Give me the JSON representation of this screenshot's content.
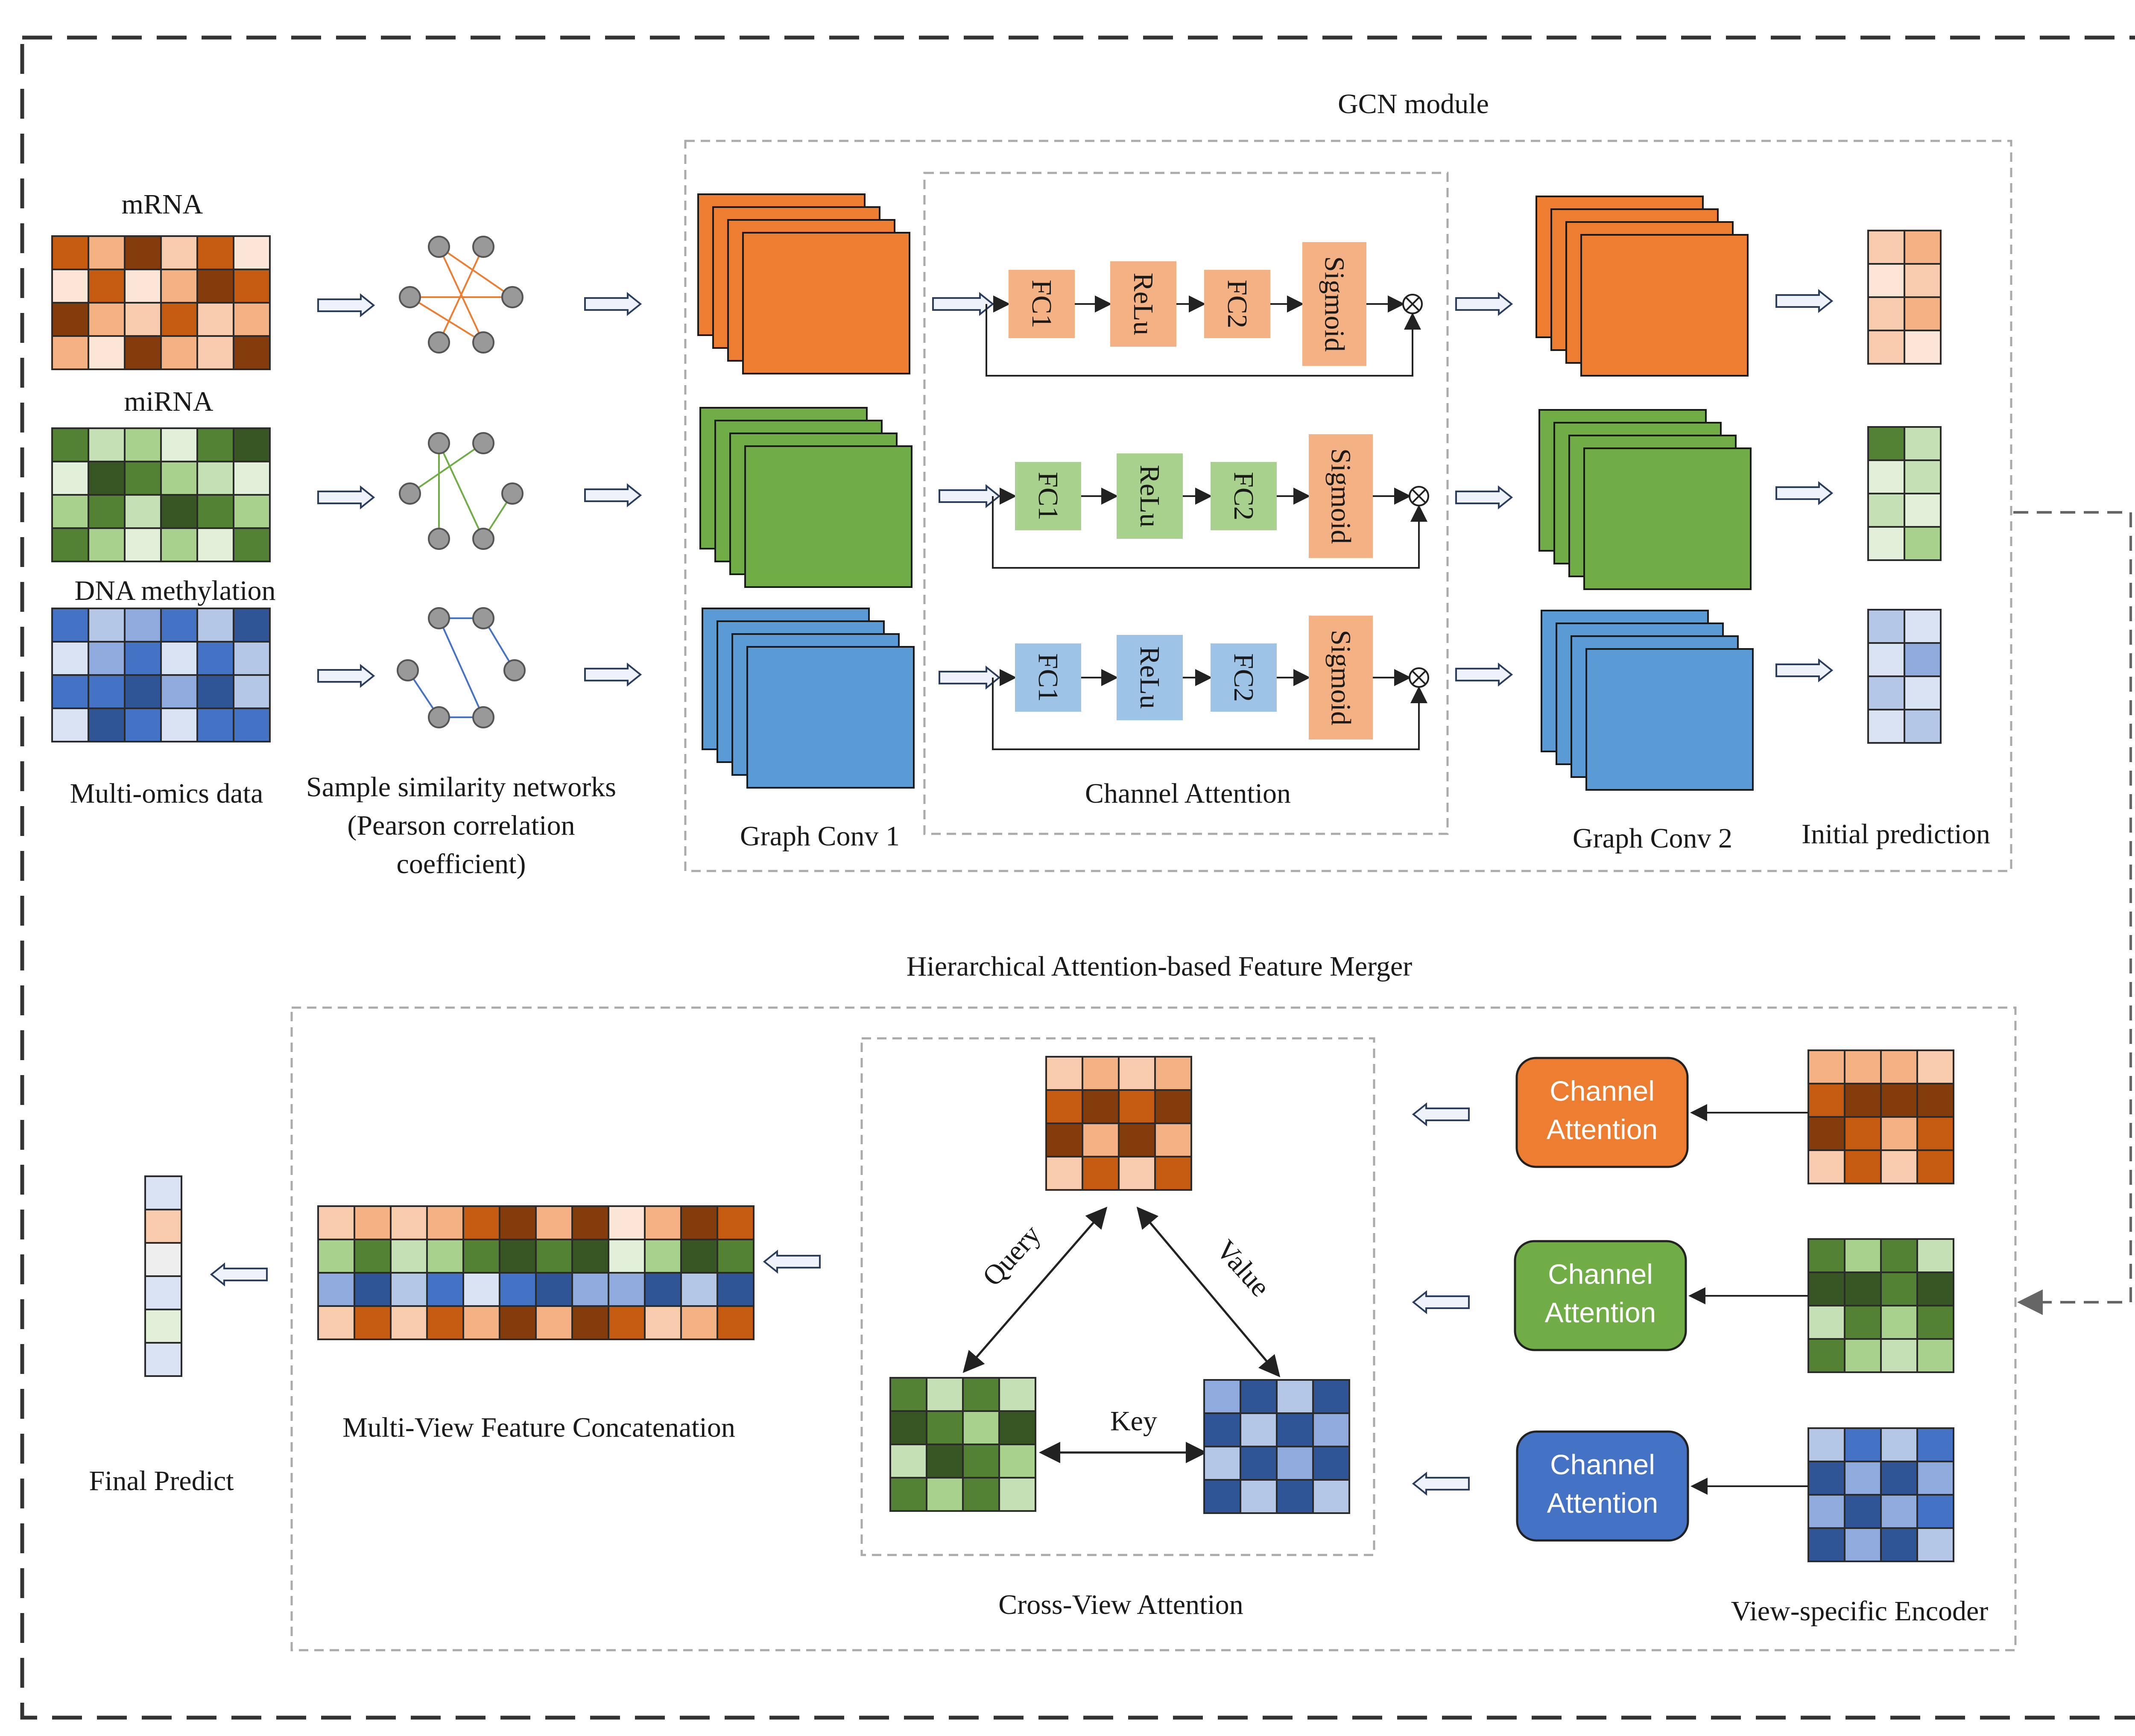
{
  "labels": {
    "gcn_module": "GCN module",
    "mrna": "mRNA",
    "mirna": "miRNA",
    "dna_methylation": "DNA methylation",
    "multi_omics": "Multi-omics data",
    "similarity_line1": "Sample similarity networks",
    "similarity_line2": "(Pearson correlation",
    "similarity_line3": "coefficient)",
    "graph_conv1": "Graph Conv 1",
    "channel_attention_caption": "Channel Attention",
    "graph_conv2": "Graph Conv 2",
    "initial_prediction": "Initial prediction",
    "hafm": "Hierarchical Attention-based Feature Merger",
    "query": "Query",
    "value": "Value",
    "key": "Key",
    "cross_view": "Cross-View Attention",
    "view_specific": "View-specific Encoder",
    "multi_view_concat": "Multi-View Feature Concatenation",
    "final_predict": "Final Predict",
    "channel_btn_line1": "Channel",
    "channel_btn_line2": "Attention"
  },
  "attention_blocks": {
    "fc1": "FC1",
    "relu": "ReLu",
    "fc2": "FC2",
    "sigmoid": "Sigmoid",
    "multiply_symbol": "⊗"
  },
  "colors": {
    "orange": "#ed7d31",
    "orange_light": "#f4b183",
    "green": "#70ad47",
    "green_light": "#a9d18e",
    "blue": "#5b9bd5",
    "blue_light": "#9dc3e6",
    "btn_blue": "#4472c4",
    "dashed": "#999999"
  },
  "icons": [
    "hollow-right-arrow-icon",
    "hollow-left-arrow-icon",
    "multiply-circle-icon",
    "double-headed-arrow-icon"
  ]
}
